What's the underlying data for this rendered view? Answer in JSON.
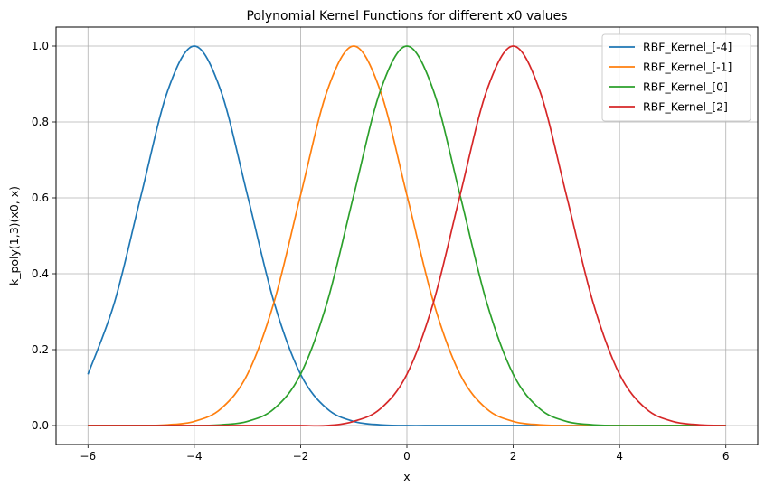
{
  "chart_data": {
    "type": "line",
    "title": "Polynomial Kernel Functions for different x0 values",
    "xlabel": "x",
    "ylabel": "k_poly(1,3)(x0, x)",
    "xlim": [
      -6.6,
      6.6
    ],
    "ylim": [
      -0.05,
      1.05
    ],
    "x_ticks": [
      -6,
      -4,
      -2,
      0,
      2,
      4,
      6
    ],
    "x_tick_labels": [
      "−6",
      "−4",
      "−2",
      "0",
      "2",
      "4",
      "6"
    ],
    "y_ticks": [
      0.0,
      0.2,
      0.4,
      0.6,
      0.8,
      1.0
    ],
    "y_tick_labels": [
      "0.0",
      "0.2",
      "0.4",
      "0.6",
      "0.8",
      "1.0"
    ],
    "grid": true,
    "legend_position": "top-right",
    "series": [
      {
        "name": "RBF_Kernel_[-4]",
        "color": "#1f77b4",
        "x": [
          -6,
          -5.5,
          -5,
          -4.5,
          -4,
          -3.5,
          -3,
          -2.5,
          -2,
          -1.5,
          -1,
          -0.5,
          0,
          0.5,
          1,
          1.5,
          2,
          2.5,
          3,
          3.5,
          4,
          4.5,
          5,
          5.5,
          6
        ],
        "y": [
          0.135,
          0.325,
          0.607,
          0.882,
          1.0,
          0.882,
          0.607,
          0.325,
          0.135,
          0.044,
          0.011,
          0.002,
          0.0,
          0.0,
          0.0,
          0.0,
          0.0,
          0.0,
          0.0,
          0.0,
          0.0,
          0.0,
          0.0,
          0.0,
          0.0
        ]
      },
      {
        "name": "RBF_Kernel_[-1]",
        "color": "#ff7f0e",
        "x": [
          -6,
          -5.5,
          -5,
          -4.5,
          -4,
          -3.5,
          -3,
          -2.5,
          -2,
          -1.5,
          -1,
          -0.5,
          0,
          0.5,
          1,
          1.5,
          2,
          2.5,
          3,
          3.5,
          4,
          4.5,
          5,
          5.5,
          6
        ],
        "y": [
          0.0,
          0.0,
          0.0,
          0.002,
          0.011,
          0.044,
          0.135,
          0.325,
          0.607,
          0.882,
          1.0,
          0.882,
          0.607,
          0.325,
          0.135,
          0.044,
          0.011,
          0.002,
          0.0,
          0.0,
          0.0,
          0.0,
          0.0,
          0.0,
          0.0
        ]
      },
      {
        "name": "RBF_Kernel_[0]",
        "color": "#2ca02c",
        "x": [
          -6,
          -5.5,
          -5,
          -4.5,
          -4,
          -3.5,
          -3,
          -2.5,
          -2,
          -1.5,
          -1,
          -0.5,
          0,
          0.5,
          1,
          1.5,
          2,
          2.5,
          3,
          3.5,
          4,
          4.5,
          5,
          5.5,
          6
        ],
        "y": [
          0.0,
          0.0,
          0.0,
          0.0,
          0.0,
          0.002,
          0.011,
          0.044,
          0.135,
          0.325,
          0.607,
          0.882,
          1.0,
          0.882,
          0.607,
          0.325,
          0.135,
          0.044,
          0.011,
          0.002,
          0.0,
          0.0,
          0.0,
          0.0,
          0.0
        ]
      },
      {
        "name": "RBF_Kernel_[2]",
        "color": "#d62728",
        "x": [
          -6,
          -5.5,
          -5,
          -4.5,
          -4,
          -3.5,
          -3,
          -2.5,
          -2,
          -1.5,
          -1,
          -0.5,
          0,
          0.5,
          1,
          1.5,
          2,
          2.5,
          3,
          3.5,
          4,
          4.5,
          5,
          5.5,
          6
        ],
        "y": [
          0.0,
          0.0,
          0.0,
          0.0,
          0.0,
          0.0,
          0.0,
          0.0,
          0.0,
          0.0,
          0.011,
          0.044,
          0.135,
          0.325,
          0.607,
          0.882,
          1.0,
          0.882,
          0.607,
          0.325,
          0.135,
          0.044,
          0.011,
          0.002,
          0.0
        ]
      }
    ]
  }
}
